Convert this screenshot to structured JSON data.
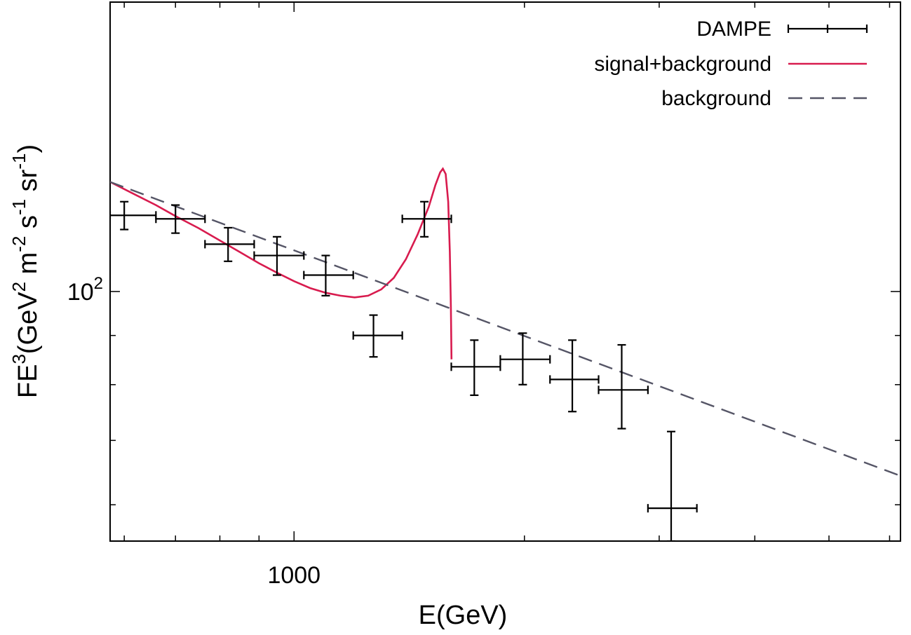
{
  "chart_data": {
    "type": "scatter",
    "xlabel": "E(GeV)",
    "ylabel": {
      "parts": [
        "FE",
        "3",
        "(GeV",
        "2",
        " m",
        "-2",
        " s",
        "-1",
        " sr",
        "-1",
        ")"
      ]
    },
    "xscale": "log",
    "yscale": "log",
    "xlim": [
      575,
      6200
    ],
    "ylim": [
      55,
      200
    ],
    "x_tick_labels": [
      {
        "value": 1000,
        "label": "1000"
      }
    ],
    "y_tick_labels": [
      {
        "value": 100,
        "base": "10",
        "exp": "2"
      }
    ],
    "grid": false,
    "legend_position": "top-right",
    "series": [
      {
        "name": "DAMPE",
        "style": "errorbars",
        "color": "#000000",
        "points": [
          {
            "x": 600,
            "xlo": 575,
            "xhi": 660,
            "y": 120,
            "ylo": 116,
            "yhi": 124
          },
          {
            "x": 700,
            "xlo": 660,
            "xhi": 765,
            "y": 119,
            "ylo": 115,
            "yhi": 123
          },
          {
            "x": 820,
            "xlo": 765,
            "xhi": 887,
            "y": 112,
            "ylo": 107.5,
            "yhi": 116.5
          },
          {
            "x": 950,
            "xlo": 887,
            "xhi": 1030,
            "y": 109,
            "ylo": 104,
            "yhi": 114
          },
          {
            "x": 1100,
            "xlo": 1030,
            "xhi": 1195,
            "y": 104,
            "ylo": 99,
            "yhi": 109
          },
          {
            "x": 1270,
            "xlo": 1195,
            "xhi": 1385,
            "y": 90,
            "ylo": 85.5,
            "yhi": 94.5
          },
          {
            "x": 1480,
            "xlo": 1385,
            "xhi": 1605,
            "y": 119,
            "ylo": 114,
            "yhi": 124
          },
          {
            "x": 1720,
            "xlo": 1605,
            "xhi": 1860,
            "y": 83.5,
            "ylo": 78,
            "yhi": 89
          },
          {
            "x": 1990,
            "xlo": 1860,
            "xhi": 2160,
            "y": 85,
            "ylo": 80,
            "yhi": 90.5
          },
          {
            "x": 2310,
            "xlo": 2160,
            "xhi": 2500,
            "y": 81,
            "ylo": 75,
            "yhi": 89
          },
          {
            "x": 2680,
            "xlo": 2500,
            "xhi": 2900,
            "y": 79,
            "ylo": 72,
            "yhi": 88
          },
          {
            "x": 3110,
            "xlo": 2900,
            "xhi": 3360,
            "y": 59.5,
            "ylo": 55,
            "yhi": 71.5
          }
        ]
      },
      {
        "name": "signal+background",
        "style": "solid",
        "color": "#d81b4e",
        "points": [
          [
            575,
            130.0
          ],
          [
            620,
            126.1
          ],
          [
            660,
            123.0
          ],
          [
            700,
            119.8
          ],
          [
            750,
            116.4
          ],
          [
            800,
            113.0
          ],
          [
            850,
            109.9
          ],
          [
            900,
            107.0
          ],
          [
            950,
            104.6
          ],
          [
            1000,
            102.5
          ],
          [
            1050,
            100.8
          ],
          [
            1100,
            99.7
          ],
          [
            1150,
            99.0
          ],
          [
            1200,
            98.6
          ],
          [
            1250,
            99.0
          ],
          [
            1300,
            100.5
          ],
          [
            1350,
            103.3
          ],
          [
            1400,
            108.0
          ],
          [
            1450,
            114.6
          ],
          [
            1500,
            122.5
          ],
          [
            1530,
            129.0
          ],
          [
            1552,
            133.0
          ],
          [
            1565,
            134.2
          ],
          [
            1578,
            132.5
          ],
          [
            1590,
            124.0
          ],
          [
            1598,
            110.0
          ],
          [
            1603,
            96.5
          ],
          [
            1606,
            85.0
          ]
        ]
      },
      {
        "name": "background",
        "style": "dashed",
        "color": "#555566",
        "points": [
          [
            575,
            130.0
          ],
          [
            6200,
            64.3
          ]
        ]
      }
    ]
  }
}
